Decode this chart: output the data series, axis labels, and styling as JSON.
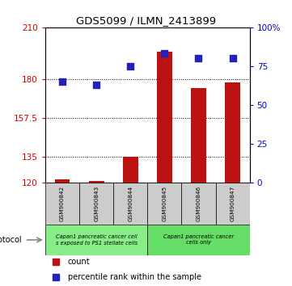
{
  "title": "GDS5099 / ILMN_2413899",
  "samples": [
    "GSM900842",
    "GSM900843",
    "GSM900844",
    "GSM900845",
    "GSM900846",
    "GSM900847"
  ],
  "counts": [
    122,
    121,
    135,
    196,
    175,
    178
  ],
  "percentiles": [
    65,
    63,
    75,
    83,
    80,
    80
  ],
  "ylim_left": [
    120,
    210
  ],
  "yticks_left": [
    120,
    135,
    157.5,
    180,
    210
  ],
  "ylim_right": [
    0,
    100
  ],
  "yticks_right": [
    0,
    25,
    50,
    75,
    100
  ],
  "ytick_labels_right": [
    "0",
    "25",
    "50",
    "75",
    "100%"
  ],
  "bar_color": "#bb1111",
  "dot_color": "#2222bb",
  "protocol_groups": [
    {
      "label": "Capan1 pancreatic cancer cell\ns exposed to PS1 stellate cells",
      "color": "#88ee88",
      "start": 0,
      "end": 3
    },
    {
      "label": "Capan1 pancreatic cancer\ncells only",
      "color": "#66dd66",
      "start": 3,
      "end": 6
    }
  ],
  "protocol_text": "protocol",
  "legend_items": [
    {
      "color": "#bb1111",
      "label": "count"
    },
    {
      "color": "#2222bb",
      "label": "percentile rank within the sample"
    }
  ],
  "bg_color": "#ffffff",
  "tick_color_left": "#cc0000",
  "tick_color_right": "#0000cc"
}
